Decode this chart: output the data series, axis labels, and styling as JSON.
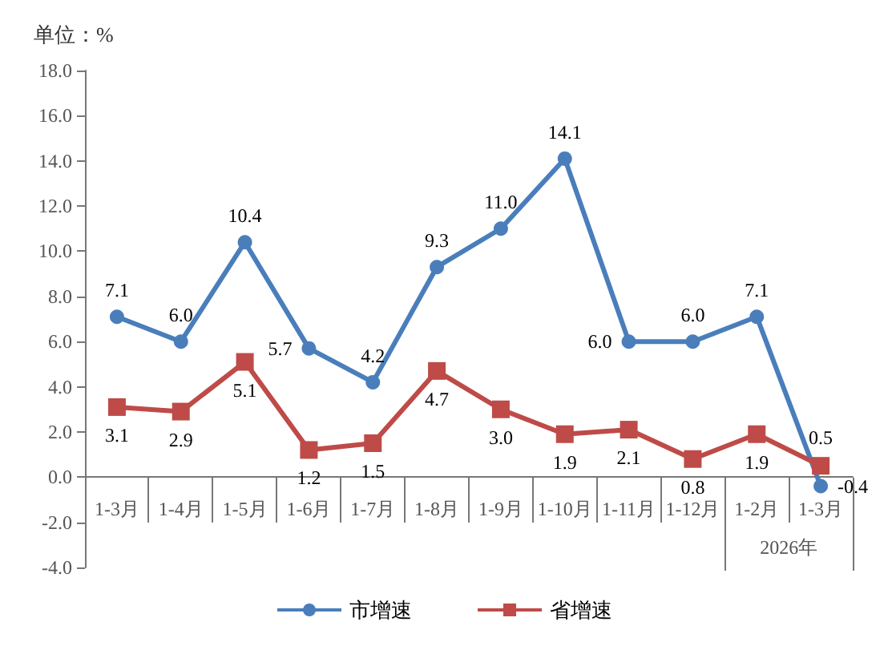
{
  "chart_data": {
    "type": "line",
    "ylabel": "单位：%",
    "categories": [
      "1-3月",
      "1-4月",
      "1-5月",
      "1-6月",
      "1-7月",
      "1-8月",
      "1-9月",
      "1-10月",
      "1-11月",
      "1-12月",
      "1-2月",
      "1-3月"
    ],
    "series": [
      {
        "name": "市增速",
        "color": "#4a7ebb",
        "marker": "circle",
        "values": [
          7.1,
          6.0,
          10.4,
          5.7,
          4.2,
          9.3,
          11.0,
          14.1,
          6.0,
          6.0,
          7.1,
          -0.4
        ],
        "value_labels": [
          "7.1",
          "6.0",
          "10.4",
          "5.7",
          "4.2",
          "9.3",
          "11.0",
          "14.1",
          "6.0",
          "6.0",
          "7.1",
          "-0.4"
        ]
      },
      {
        "name": "省增速",
        "color": "#be4b48",
        "marker": "square",
        "values": [
          3.1,
          2.9,
          5.1,
          1.2,
          1.5,
          4.7,
          3.0,
          1.9,
          2.1,
          0.8,
          1.9,
          0.5
        ],
        "value_labels": [
          "3.1",
          "2.9",
          "5.1",
          "1.2",
          "1.5",
          "4.7",
          "3.0",
          "1.9",
          "2.1",
          "0.8",
          "1.9",
          "0.5"
        ]
      }
    ],
    "ylim": [
      -4,
      18
    ],
    "yticks": [
      {
        "value": -4,
        "label": "-4.0"
      },
      {
        "value": -2,
        "label": "-2.0"
      },
      {
        "value": 0,
        "label": "0.0"
      },
      {
        "value": 2,
        "label": "2.0"
      },
      {
        "value": 4,
        "label": "4.0"
      },
      {
        "value": 6,
        "label": "6.0"
      },
      {
        "value": 8,
        "label": "8.0"
      },
      {
        "value": 10,
        "label": "10.0"
      },
      {
        "value": 12,
        "label": "12.0"
      },
      {
        "value": 14,
        "label": "14.0"
      },
      {
        "value": 16,
        "label": "16.0"
      },
      {
        "value": 18,
        "label": "18.0"
      }
    ],
    "grid": false,
    "legend": "bottom",
    "line_style": "solid",
    "annotations": [
      "2026年"
    ]
  }
}
